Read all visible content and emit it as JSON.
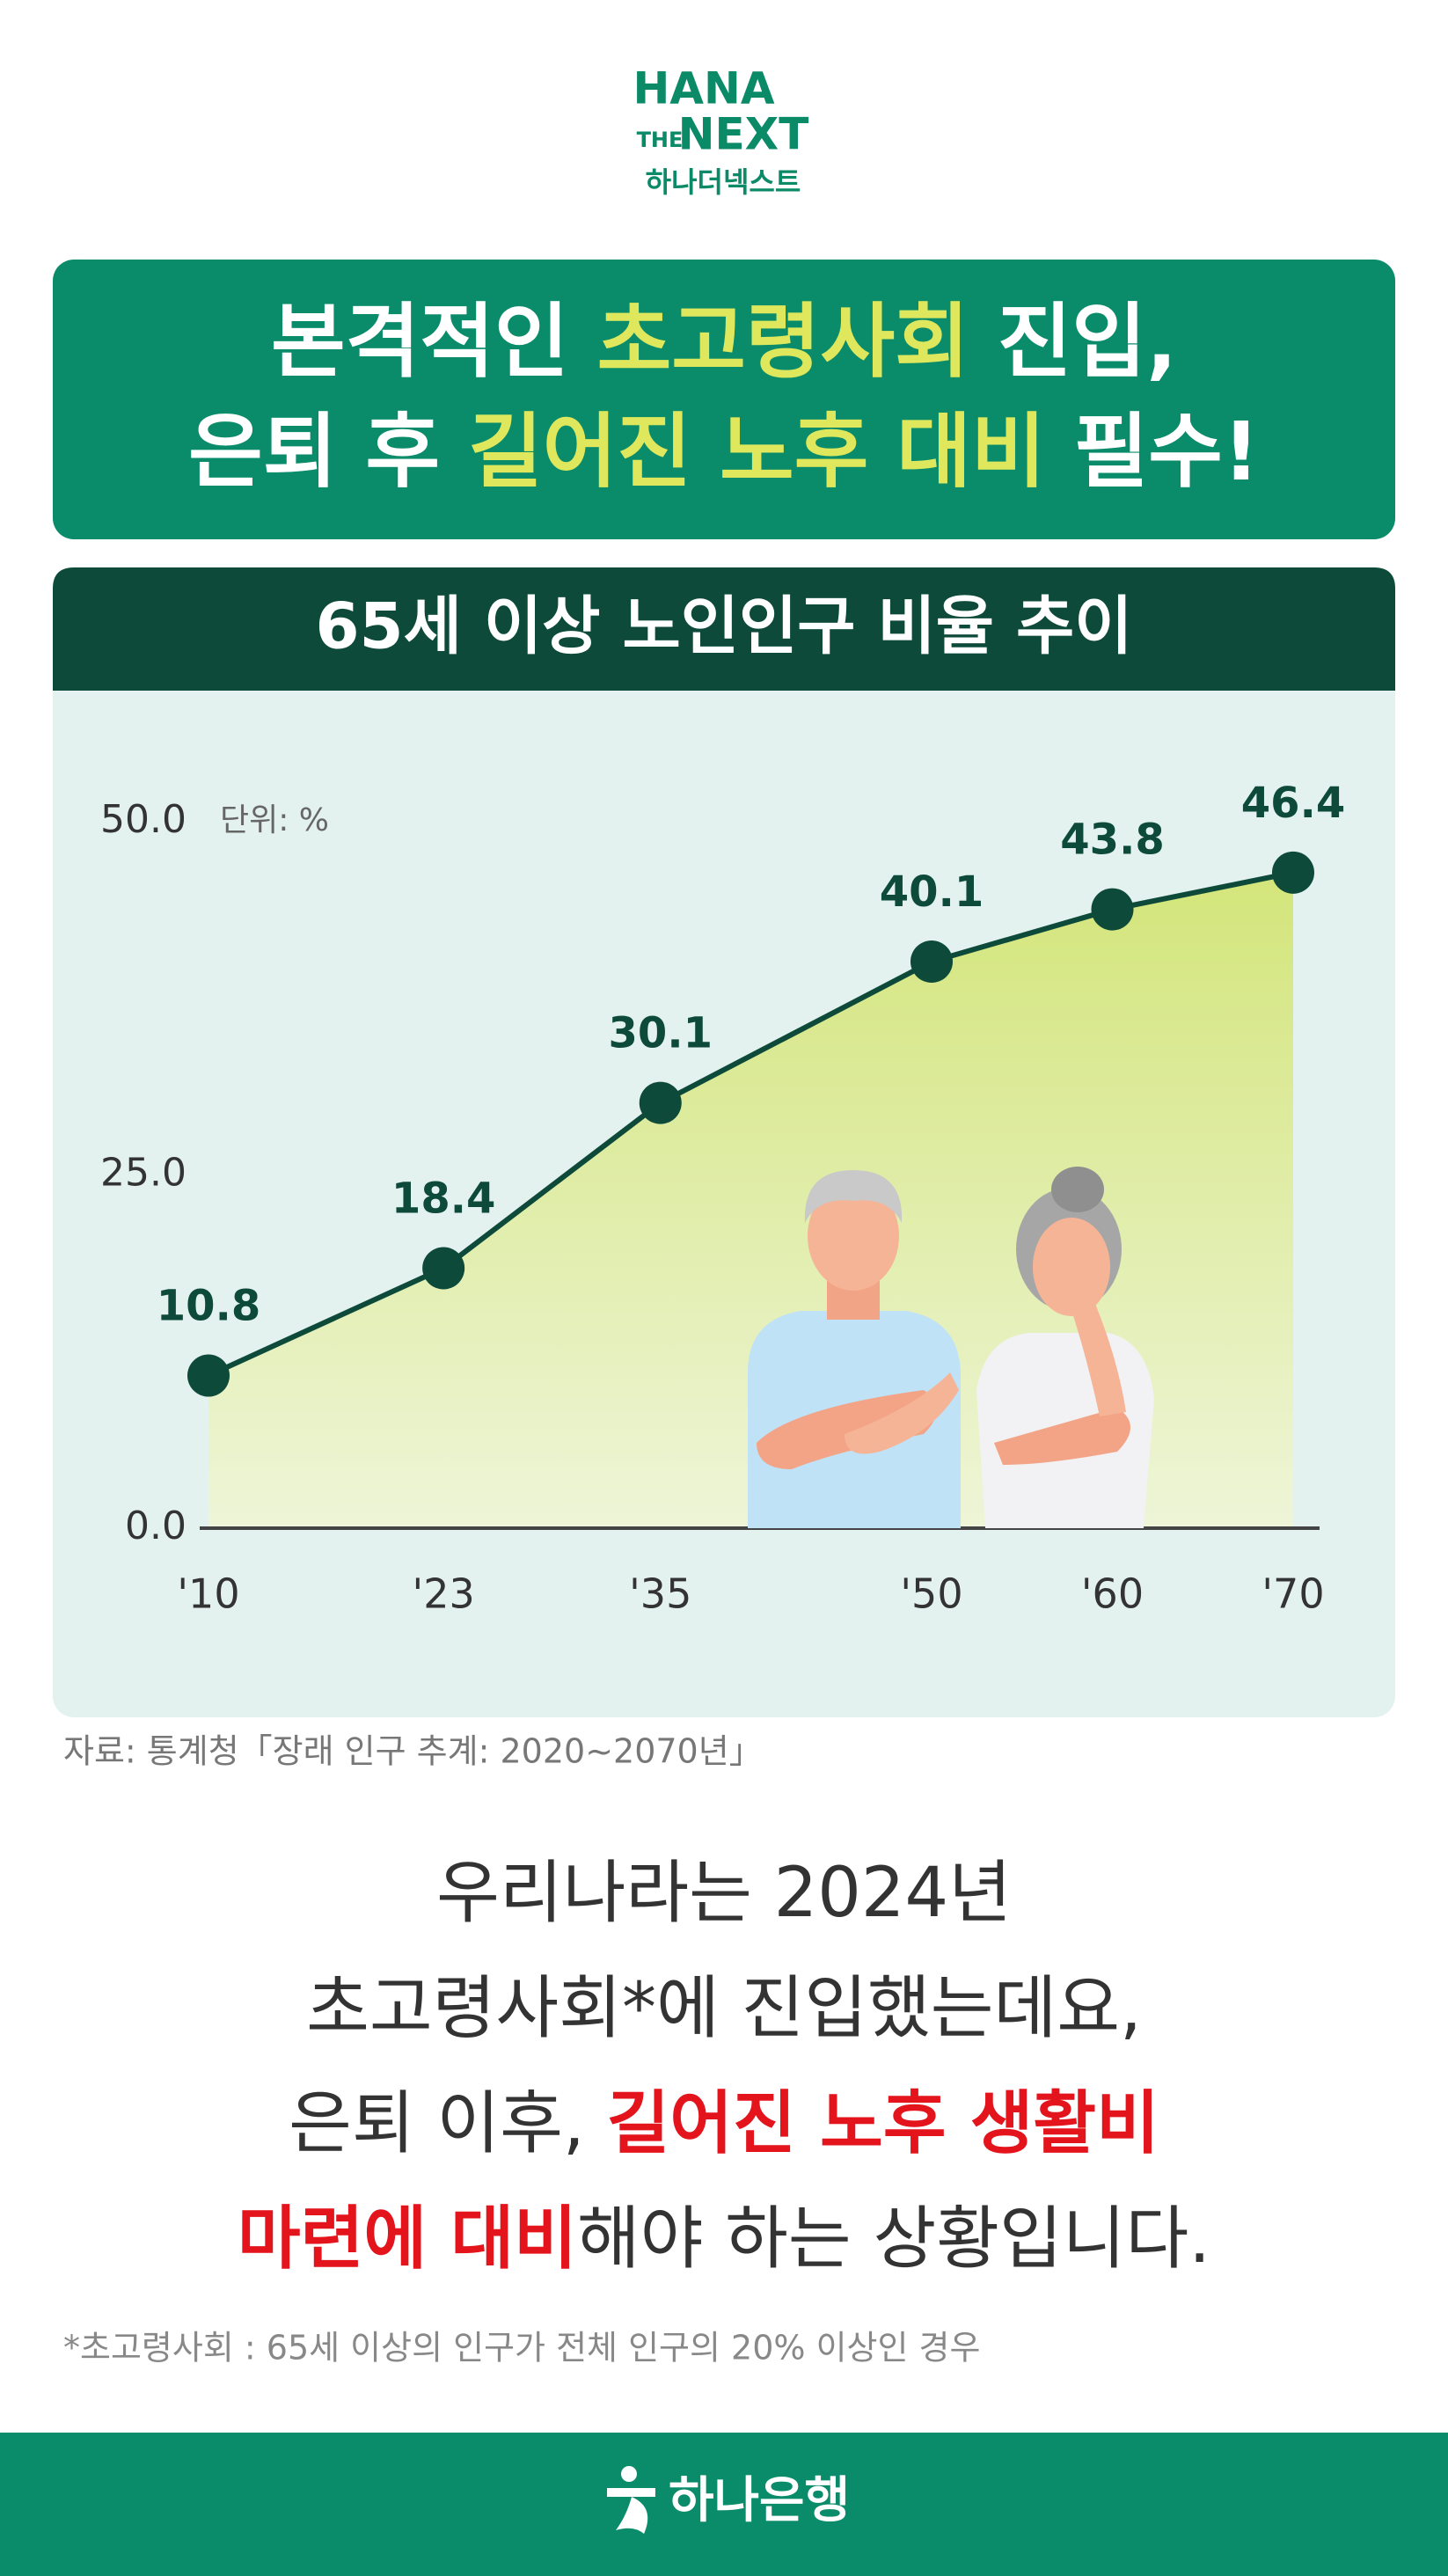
{
  "logo": {
    "line1": "HANA",
    "line2a": "THE",
    "line2b": "NEXT",
    "line3": "하나더넥스트"
  },
  "headline": [
    [
      "본격적인 ",
      "초고령사회",
      " 진입,"
    ],
    [
      "은퇴 후 ",
      "길어진 노후 대비",
      " 필수!"
    ]
  ],
  "chart_data": {
    "type": "line",
    "title": "65세 이상 노인인구 비율 추이",
    "unit": "단위: %",
    "x": [
      2010,
      2023,
      2035,
      2050,
      2060,
      2070
    ],
    "xlim": [
      2010,
      2070
    ],
    "xticks": [
      {
        "value": 2010,
        "label": "'10"
      },
      {
        "value": 2023,
        "label": "'23"
      },
      {
        "value": 2035,
        "label": "'35"
      },
      {
        "value": 2050,
        "label": "'50"
      },
      {
        "value": 2060,
        "label": "'60"
      },
      {
        "value": 2070,
        "label": "'70"
      }
    ],
    "ylim": [
      0,
      50
    ],
    "yticks": [
      {
        "value": 0,
        "label": "0.0"
      },
      {
        "value": 25,
        "label": "25.0"
      },
      {
        "value": 50,
        "label": "50.0"
      }
    ],
    "series": [
      {
        "name": "65세 이상 노인인구 비율",
        "color": "#0d4a3a",
        "values": [
          10.8,
          18.4,
          30.1,
          40.1,
          43.8,
          46.4
        ]
      }
    ]
  },
  "source": "자료: 통계청「장래 인구 추계: 2020~2070년」",
  "body": [
    [
      "우리나라는 2024년"
    ],
    [
      "초고령사회*에 진입했는데요,"
    ],
    [
      "은퇴 이후, ",
      "길어진 노후 생활비"
    ],
    [
      "마련에 대비",
      "해야 하는 상황입니다."
    ]
  ],
  "footnote": "*초고령사회 : 65세 이상의 인구가 전체 인구의 20% 이상인 경우",
  "footer": "하나은행"
}
